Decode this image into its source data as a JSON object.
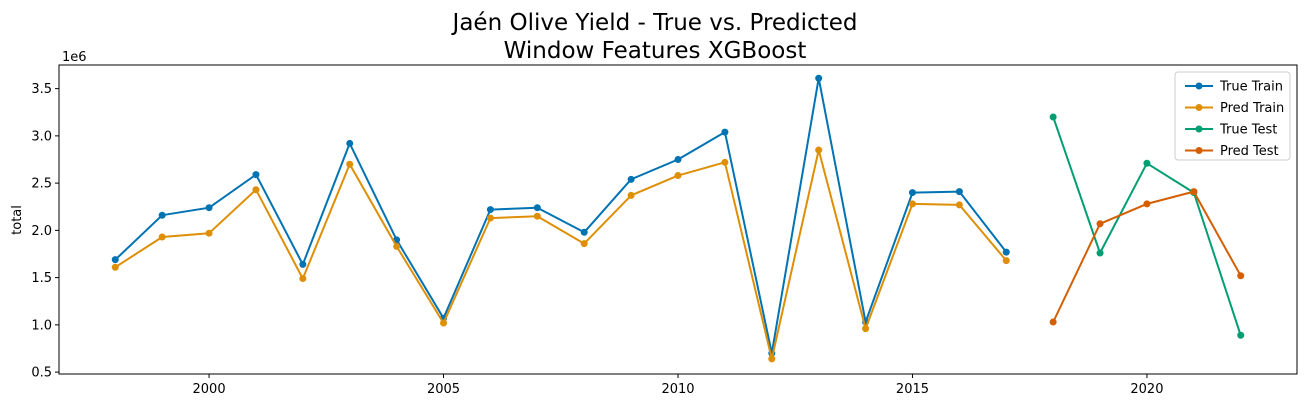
{
  "chart_data": {
    "type": "line",
    "title_line1": "Jaén Olive Yield - True vs. Predicted",
    "title_line2": "Window Features XGBoost",
    "xlabel": "",
    "ylabel": "total",
    "y_offset_label": "1e6",
    "xlim": [
      1996.8,
      2023.2
    ],
    "ylim": [
      0.48,
      3.75
    ],
    "x_ticks": [
      2000,
      2005,
      2010,
      2015,
      2020
    ],
    "x_tick_labels": [
      "2000",
      "2005",
      "2010",
      "2015",
      "2020"
    ],
    "y_ticks": [
      0.5,
      1.0,
      1.5,
      2.0,
      2.5,
      3.0,
      3.5
    ],
    "y_tick_labels": [
      "0.5",
      "1.0",
      "1.5",
      "2.0",
      "2.5",
      "3.0",
      "3.5"
    ],
    "grid": false,
    "legend_position": "top-right",
    "series": [
      {
        "name": "True Train",
        "color": "#0173b2",
        "x": [
          1998,
          1999,
          2000,
          2001,
          2002,
          2003,
          2004,
          2005,
          2006,
          2007,
          2008,
          2009,
          2010,
          2011,
          2012,
          2013,
          2014,
          2015,
          2016,
          2017
        ],
        "values": [
          1.69,
          2.16,
          2.24,
          2.59,
          1.64,
          2.92,
          1.9,
          1.07,
          2.22,
          2.24,
          1.98,
          2.54,
          2.75,
          3.04,
          0.7,
          3.61,
          1.03,
          2.4,
          2.41,
          1.77
        ]
      },
      {
        "name": "Pred Train",
        "color": "#de8f05",
        "x": [
          1998,
          1999,
          2000,
          2001,
          2002,
          2003,
          2004,
          2005,
          2006,
          2007,
          2008,
          2009,
          2010,
          2011,
          2012,
          2013,
          2014,
          2015,
          2016,
          2017
        ],
        "values": [
          1.61,
          1.93,
          1.97,
          2.43,
          1.49,
          2.7,
          1.83,
          1.02,
          2.13,
          2.15,
          1.86,
          2.37,
          2.58,
          2.72,
          0.64,
          2.85,
          0.96,
          2.28,
          2.27,
          1.68
        ]
      },
      {
        "name": "True Test",
        "color": "#029e73",
        "x": [
          2018,
          2019,
          2020,
          2021,
          2022
        ],
        "values": [
          3.2,
          1.76,
          2.71,
          2.4,
          0.89
        ]
      },
      {
        "name": "Pred Test",
        "color": "#d55e00",
        "x": [
          2018,
          2019,
          2020,
          2021,
          2022
        ],
        "values": [
          1.03,
          2.07,
          2.28,
          2.41,
          1.52
        ]
      }
    ]
  }
}
